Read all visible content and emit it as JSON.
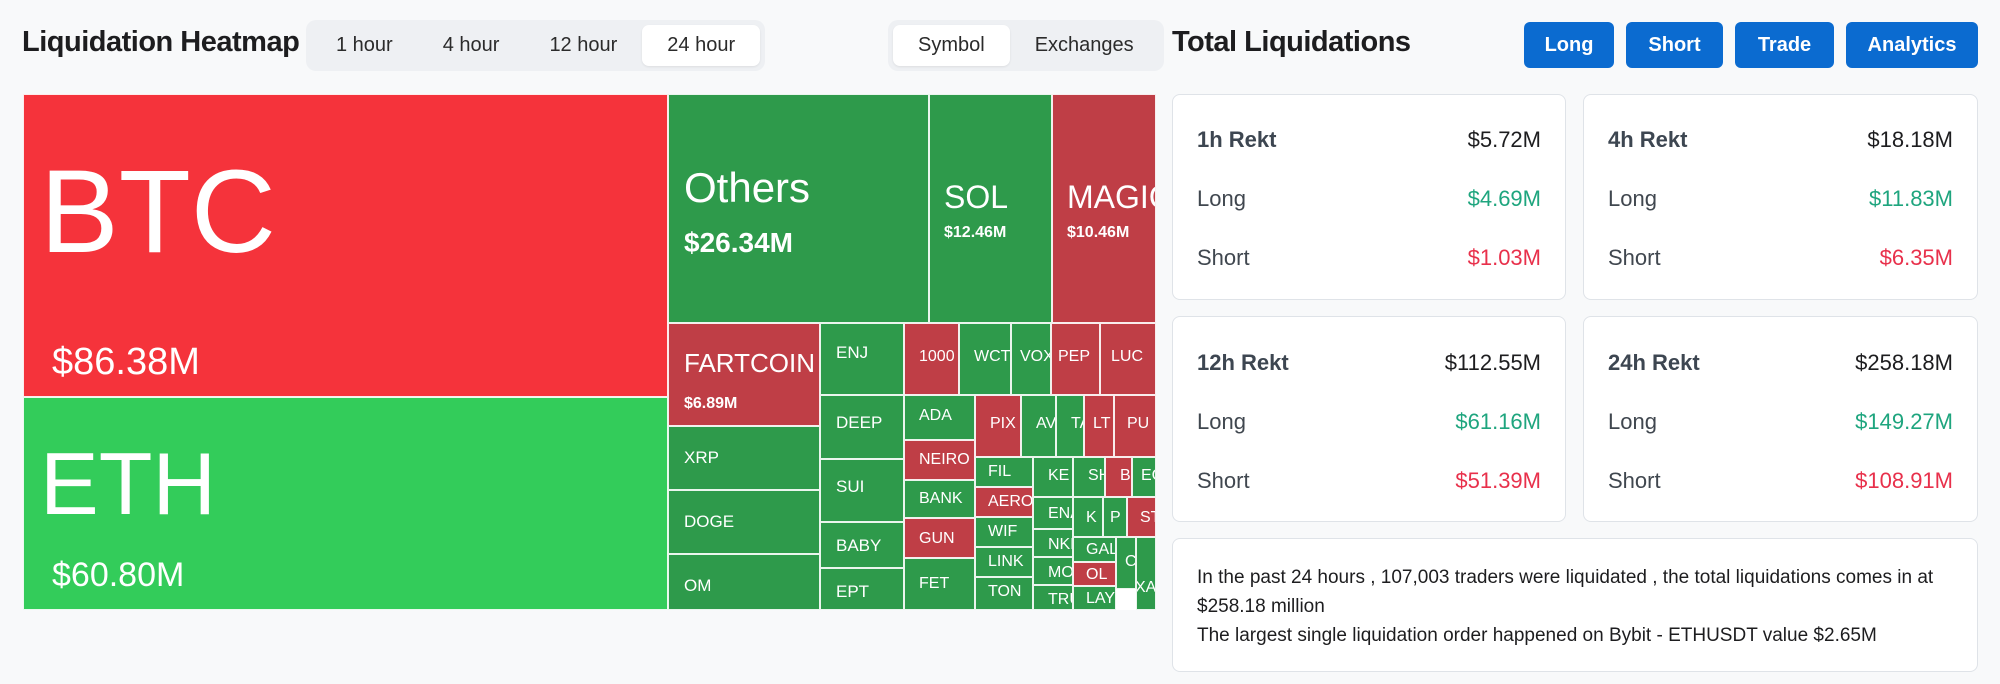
{
  "heatmap": {
    "title": "Liquidation Heatmap",
    "time_tabs": [
      "1 hour",
      "4 hour",
      "12 hour",
      "24 hour"
    ],
    "active_time_tab": "24 hour",
    "view_tabs": [
      "Symbol",
      "Exchanges"
    ],
    "active_view_tab": "Symbol",
    "colors": {
      "long": "#2e9a4b",
      "short": "#bf3e46",
      "btc": "#f5333b",
      "eth": "#33cc5a"
    },
    "tiles": [
      {
        "symbol": "BTC",
        "value": "$86.38M"
      },
      {
        "symbol": "ETH",
        "value": "$60.80M"
      },
      {
        "symbol": "Others",
        "value": "$26.34M"
      },
      {
        "symbol": "SOL",
        "value": "$12.46M"
      },
      {
        "symbol": "MAGIC",
        "value": "$10.46M"
      },
      {
        "symbol": "FARTCOIN",
        "value": "$6.89M"
      },
      {
        "symbol": "XRP",
        "value": ""
      },
      {
        "symbol": "DOGE",
        "value": ""
      },
      {
        "symbol": "OM",
        "value": ""
      },
      {
        "symbol": "ENJ",
        "value": ""
      },
      {
        "symbol": "DEEP",
        "value": ""
      },
      {
        "symbol": "SUI",
        "value": ""
      },
      {
        "symbol": "BABY",
        "value": ""
      },
      {
        "symbol": "EPT",
        "value": ""
      },
      {
        "symbol": "1000",
        "value": ""
      },
      {
        "symbol": "WCT",
        "value": ""
      },
      {
        "symbol": "VOX",
        "value": ""
      },
      {
        "symbol": "PEP",
        "value": ""
      },
      {
        "symbol": "LUC",
        "value": ""
      },
      {
        "symbol": "ADA",
        "value": ""
      },
      {
        "symbol": "NEIRO",
        "value": ""
      },
      {
        "symbol": "BANK",
        "value": ""
      },
      {
        "symbol": "GUN",
        "value": ""
      },
      {
        "symbol": "FET",
        "value": ""
      },
      {
        "symbol": "PIX",
        "value": ""
      },
      {
        "symbol": "AV",
        "value": ""
      },
      {
        "symbol": "TA",
        "value": ""
      },
      {
        "symbol": "LT",
        "value": ""
      },
      {
        "symbol": "PU",
        "value": ""
      },
      {
        "symbol": "FIL",
        "value": ""
      },
      {
        "symbol": "AERO",
        "value": ""
      },
      {
        "symbol": "WIF",
        "value": ""
      },
      {
        "symbol": "LINK",
        "value": ""
      },
      {
        "symbol": "TON",
        "value": ""
      },
      {
        "symbol": "KE",
        "value": ""
      },
      {
        "symbol": "SH",
        "value": ""
      },
      {
        "symbol": "BR",
        "value": ""
      },
      {
        "symbol": "EC",
        "value": ""
      },
      {
        "symbol": "ENA",
        "value": ""
      },
      {
        "symbol": "NKN",
        "value": ""
      },
      {
        "symbol": "MO",
        "value": ""
      },
      {
        "symbol": "TRU",
        "value": ""
      },
      {
        "symbol": "K",
        "value": ""
      },
      {
        "symbol": "P",
        "value": ""
      },
      {
        "symbol": "ST",
        "value": ""
      },
      {
        "symbol": "GAL",
        "value": ""
      },
      {
        "symbol": "OL",
        "value": ""
      },
      {
        "symbol": "LAY",
        "value": ""
      },
      {
        "symbol": "C",
        "value": ""
      },
      {
        "symbol": "XAI",
        "value": ""
      }
    ]
  },
  "totals": {
    "title": "Total Liquidations",
    "buttons": [
      "Long",
      "Short",
      "Trade",
      "Analytics"
    ],
    "cards": [
      {
        "label": "1h Rekt",
        "total": "$5.72M",
        "long_label": "Long",
        "long": "$4.69M",
        "short_label": "Short",
        "short": "$1.03M"
      },
      {
        "label": "4h Rekt",
        "total": "$18.18M",
        "long_label": "Long",
        "long": "$11.83M",
        "short_label": "Short",
        "short": "$6.35M"
      },
      {
        "label": "12h Rekt",
        "total": "$112.55M",
        "long_label": "Long",
        "long": "$61.16M",
        "short_label": "Short",
        "short": "$51.39M"
      },
      {
        "label": "24h Rekt",
        "total": "$258.18M",
        "long_label": "Long",
        "long": "$149.27M",
        "short_label": "Short",
        "short": "$108.91M"
      }
    ],
    "summary_line1": "In the past 24 hours , 107,003 traders were liquidated , the total liquidations comes in at $258.18 million",
    "summary_line2": "The largest single liquidation order happened on Bybit - ETHUSDT value $2.65M"
  }
}
